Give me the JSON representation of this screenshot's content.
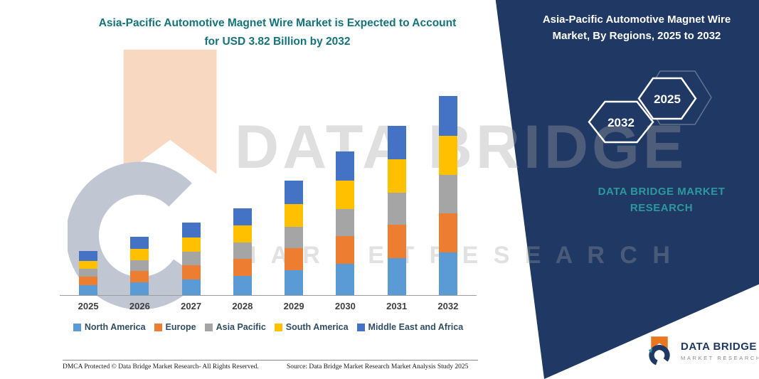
{
  "main_title": {
    "line1": "Asia-Pacific Automotive Magnet Wire Market is Expected to Account",
    "line2": "for USD 3.82 Billion by 2032"
  },
  "side_panel": {
    "title_line1": "Asia-Pacific Automotive Magnet Wire",
    "title_line2": "Market, By Regions, 2025 to 2032",
    "hexagons": [
      {
        "label": "2032"
      },
      {
        "label": "2025"
      }
    ],
    "brand_line1": "DATA BRIDGE MARKET",
    "brand_line2": "RESEARCH",
    "bg_color": "#1F3864",
    "accent_color": "#2D989D"
  },
  "watermark": {
    "line1": "DATA BRIDGE",
    "line2": "M A R K E T   R E S E A R C H"
  },
  "logo": {
    "name": "DATA BRIDGE",
    "tagline": "MARKET RESEARCH"
  },
  "footer": {
    "left": "DMCA Protected © Data Bridge Market Research- All Rights Reserved.",
    "source": "Source: Data Bridge Market Research Market Analysis Study 2025"
  },
  "chart_data": {
    "type": "bar",
    "stacked": true,
    "title": "Asia-Pacific Automotive Magnet Wire Market is Expected to Account for USD 3.82 Billion by 2032",
    "unit": "USD Billion (estimated from bar heights; 2032 total = 3.82)",
    "categories": [
      "2025",
      "2026",
      "2027",
      "2028",
      "2029",
      "2030",
      "2031",
      "2032"
    ],
    "series": [
      {
        "name": "North America",
        "color": "#5B9BD5",
        "values": [
          0.19,
          0.25,
          0.3,
          0.37,
          0.48,
          0.6,
          0.71,
          0.82
        ]
      },
      {
        "name": "Europe",
        "color": "#ED7D31",
        "values": [
          0.16,
          0.22,
          0.27,
          0.33,
          0.42,
          0.53,
          0.64,
          0.75
        ]
      },
      {
        "name": "Asia Pacific",
        "color": "#A5A5A5",
        "values": [
          0.15,
          0.2,
          0.26,
          0.31,
          0.41,
          0.52,
          0.61,
          0.74
        ]
      },
      {
        "name": "South America",
        "color": "#FFC000",
        "values": [
          0.16,
          0.22,
          0.27,
          0.33,
          0.44,
          0.55,
          0.64,
          0.75
        ]
      },
      {
        "name": "Middle East and Africa",
        "color": "#4472C4",
        "values": [
          0.19,
          0.23,
          0.29,
          0.33,
          0.44,
          0.55,
          0.65,
          0.76
        ]
      }
    ],
    "totals": [
      0.85,
      1.12,
      1.39,
      1.67,
      2.19,
      2.75,
      3.25,
      3.82
    ],
    "ylim": [
      0,
      4.2
    ],
    "grid": false,
    "y_axis_labels_visible": false,
    "legend_position": "bottom"
  }
}
